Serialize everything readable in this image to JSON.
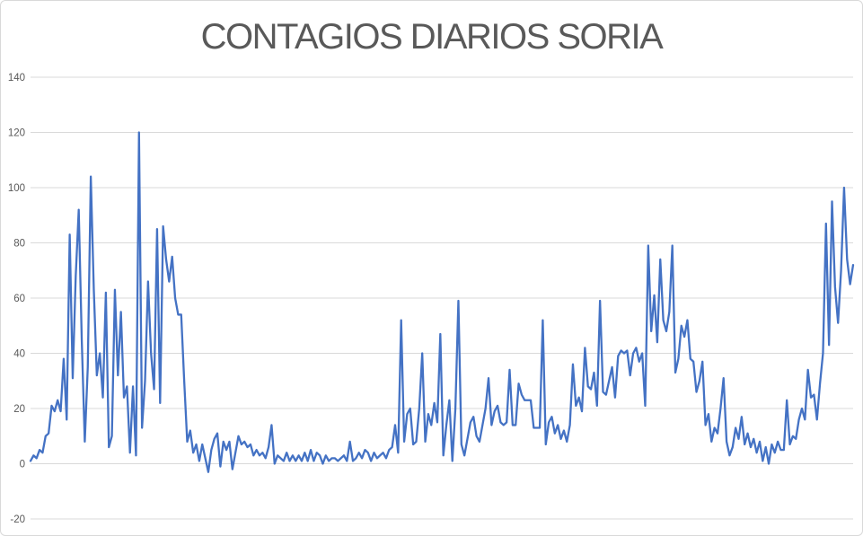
{
  "title": "CONTAGIOS DIARIOS SORIA",
  "colors": {
    "line": "#4472C4",
    "gridline": "#D9D9D9",
    "axis_label": "#595959",
    "title": "#595959",
    "background": "#FFFFFF",
    "frame_border": "#D9D9D9"
  },
  "y_axis": {
    "ticks": [
      140,
      120,
      100,
      80,
      60,
      40,
      20,
      0,
      -20
    ],
    "min": -20,
    "max": 140
  },
  "x_axis": {
    "labels_visible": false
  },
  "chart_data": {
    "type": "line",
    "title": "CONTAGIOS DIARIOS SORIA",
    "xlabel": "",
    "ylabel": "",
    "ylim": [
      -20,
      140
    ],
    "y_ticks": [
      140,
      120,
      100,
      80,
      60,
      40,
      20,
      0,
      -20
    ],
    "grid": true,
    "legend": false,
    "x_tick_labels": [],
    "n_points": 274,
    "series": [
      {
        "name": "Contagios diarios",
        "color": "#4472C4",
        "values": [
          1,
          3,
          2,
          5,
          4,
          10,
          11,
          21,
          19,
          23,
          19,
          38,
          16,
          83,
          31,
          68,
          92,
          45,
          8,
          35,
          104,
          63,
          32,
          40,
          24,
          62,
          6,
          10,
          63,
          32,
          55,
          24,
          28,
          4,
          28,
          3,
          120,
          13,
          30,
          66,
          40,
          27,
          85,
          22,
          86,
          74,
          66,
          75,
          60,
          54,
          54,
          30,
          8,
          12,
          4,
          7,
          1,
          7,
          2,
          -3,
          5,
          9,
          11,
          -1,
          8,
          5,
          8,
          -2,
          4,
          10,
          7,
          8,
          6,
          7,
          3,
          5,
          3,
          4,
          2,
          6,
          14,
          0,
          3,
          2,
          1,
          4,
          1,
          3,
          1,
          3,
          1,
          4,
          1,
          5,
          1,
          4,
          3,
          0,
          3,
          1,
          2,
          2,
          1,
          2,
          3,
          1,
          8,
          1,
          2,
          4,
          2,
          5,
          4,
          1,
          4,
          2,
          3,
          4,
          2,
          5,
          6,
          14,
          4,
          52,
          8,
          18,
          20,
          7,
          8,
          20,
          40,
          8,
          18,
          14,
          22,
          15,
          47,
          3,
          14,
          23,
          1,
          20,
          59,
          7,
          3,
          9,
          15,
          17,
          10,
          8,
          14,
          20,
          31,
          14,
          19,
          21,
          15,
          14,
          15,
          34,
          14,
          14,
          29,
          25,
          23,
          23,
          23,
          13,
          13,
          13,
          52,
          7,
          15,
          17,
          11,
          14,
          9,
          12,
          8,
          14,
          36,
          21,
          24,
          19,
          42,
          28,
          27,
          33,
          21,
          59,
          26,
          25,
          30,
          35,
          24,
          39,
          41,
          40,
          41,
          32,
          40,
          42,
          37,
          40,
          21,
          79,
          48,
          61,
          44,
          74,
          52,
          48,
          55,
          79,
          33,
          38,
          50,
          46,
          52,
          38,
          37,
          26,
          30,
          37,
          14,
          18,
          8,
          13,
          11,
          20,
          31,
          8,
          3,
          6,
          13,
          9,
          17,
          7,
          11,
          6,
          9,
          4,
          8,
          1,
          6,
          0,
          7,
          4,
          8,
          5,
          5,
          23,
          7,
          10,
          9,
          16,
          20,
          16,
          34,
          24,
          25,
          16,
          29,
          40,
          87,
          43,
          95,
          64,
          51,
          70,
          100,
          74,
          65,
          72
        ]
      }
    ]
  }
}
